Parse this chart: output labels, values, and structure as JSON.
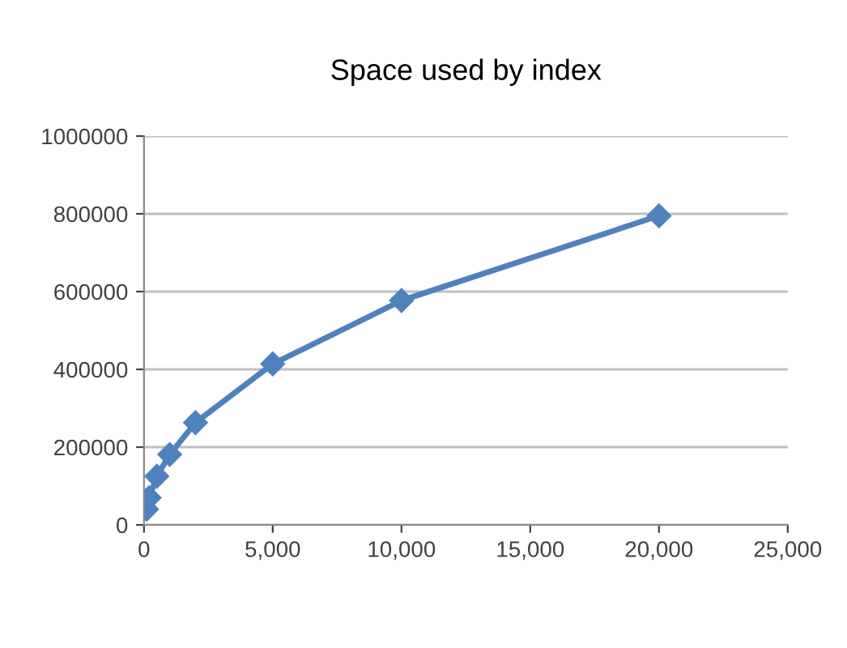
{
  "chart_data": {
    "type": "line",
    "title": "Space used by index",
    "x": [
      100,
      200,
      500,
      1000,
      2000,
      5000,
      10000,
      20000
    ],
    "series": [
      {
        "color": "#4f81bd",
        "values": [
          40000,
          70000,
          125000,
          181000,
          263000,
          414000,
          577000,
          795000
        ]
      }
    ],
    "xlim": [
      0,
      25000
    ],
    "xticks": [
      {
        "value": 0,
        "label": "0"
      },
      {
        "value": 5000,
        "label": "5,000"
      },
      {
        "value": 10000,
        "label": "10,000"
      },
      {
        "value": 15000,
        "label": "15,000"
      },
      {
        "value": 20000,
        "label": "20,000"
      },
      {
        "value": 25000,
        "label": "25,000"
      }
    ],
    "ylim": [
      0,
      1000000
    ],
    "yticks": [
      0,
      200000,
      400000,
      600000,
      800000,
      1000000
    ],
    "grid": "y",
    "marker": "diamond",
    "line_style": "solid"
  }
}
